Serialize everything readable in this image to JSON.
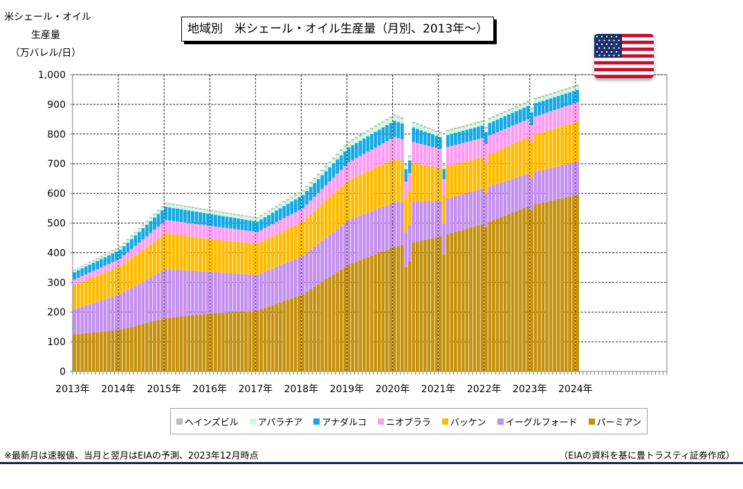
{
  "chart_data": {
    "type": "bar",
    "stacked": true,
    "title": "地域別　米シェール・オイル生産量（月別、2013年～）",
    "ylabel_lines": [
      "米シェール・オイル",
      "生産量",
      "（万バレル/日）"
    ],
    "ylim": [
      0,
      1000
    ],
    "y_ticks": [
      "0",
      "100",
      "200",
      "300",
      "400",
      "500",
      "600",
      "700",
      "800",
      "900",
      "1,000"
    ],
    "x_ticks": [
      "2013年",
      "2014年",
      "2015年",
      "2016年",
      "2017年",
      "2018年",
      "2019年",
      "2020年",
      "2021年",
      "2022年",
      "2023年",
      "2024年"
    ],
    "x_start": "2013-01",
    "x_end": "2024-01",
    "axis_end": "2025-12",
    "grid": true,
    "legend_position": "bottom",
    "series": [
      {
        "name": "パーミアン",
        "color": "#c5900a",
        "values": [
          125,
          140,
          180,
          195,
          205,
          260,
          360,
          420,
          455,
          500,
          560,
          595
        ]
      },
      {
        "name": "イーグルフォード",
        "color": "#c48ff0",
        "values": [
          85,
          120,
          165,
          140,
          120,
          130,
          150,
          150,
          120,
          120,
          110,
          112
        ]
      },
      {
        "name": "バッケン",
        "color": "#ffbb00",
        "values": [
          80,
          95,
          120,
          110,
          105,
          115,
          135,
          145,
          110,
          105,
          125,
          135
        ]
      },
      {
        "name": "ニオブララ",
        "color": "#ff9cf2",
        "values": [
          20,
          25,
          45,
          45,
          40,
          45,
          60,
          75,
          65,
          65,
          60,
          65
        ]
      },
      {
        "name": "アナダルコ",
        "color": "#12a9e6",
        "values": [
          25,
          30,
          45,
          40,
          35,
          45,
          50,
          55,
          40,
          42,
          45,
          42
        ]
      },
      {
        "name": "アパラチア",
        "color": "#c9fcd6",
        "values": [
          5,
          8,
          10,
          10,
          10,
          12,
          15,
          16,
          12,
          12,
          12,
          12
        ]
      },
      {
        "name": "ヘインズビル",
        "color": "#bdbdbd",
        "values": [
          3,
          4,
          4,
          4,
          4,
          5,
          5,
          5,
          5,
          5,
          5,
          5
        ]
      }
    ]
  },
  "legend_order": [
    "ヘインズビル",
    "アパラチア",
    "アナダルコ",
    "ニオブララ",
    "バッケン",
    "イーグルフォード",
    "パーミアン"
  ],
  "footnote": "※最新月は速報値、当月と翌月はEIAの予測、2023年12月時点",
  "source": "（EIAの資料を基に豊トラスティ証券作成）",
  "colors": {
    "grid": "#222222",
    "axis": "#808080",
    "bottom_rule": "#0d2350",
    "flag_red": "#c8102e",
    "flag_blue": "#1a2f6b"
  },
  "icons": {
    "flag": "us-flag-icon"
  }
}
